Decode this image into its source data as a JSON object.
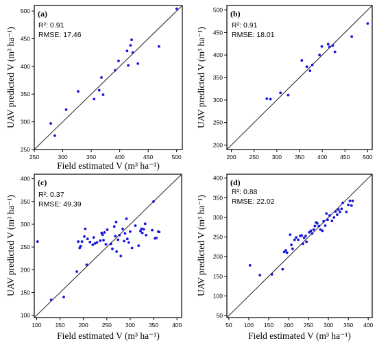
{
  "chart_data": [
    {
      "type": "scatter",
      "panel_label": "(a)",
      "r2_label": "R²:",
      "r2_value": "0.91",
      "rmse_label": "RMSE:",
      "rmse_value": "17.46",
      "xlim": [
        250,
        510
      ],
      "ylim": [
        250,
        510
      ],
      "x_ticks": [
        250,
        300,
        350,
        400,
        450,
        500
      ],
      "y_ticks": [
        250,
        300,
        350,
        400,
        450,
        500
      ],
      "reference_line": "1:1",
      "points": [
        [
          279,
          297
        ],
        [
          286,
          275
        ],
        [
          306,
          322
        ],
        [
          327,
          355
        ],
        [
          355,
          341
        ],
        [
          364,
          357
        ],
        [
          368,
          380
        ],
        [
          371,
          349
        ],
        [
          392,
          393
        ],
        [
          398,
          410
        ],
        [
          413,
          428
        ],
        [
          415,
          402
        ],
        [
          419,
          438
        ],
        [
          421,
          448
        ],
        [
          423,
          425
        ],
        [
          432,
          405
        ],
        [
          469,
          436
        ],
        [
          500,
          504
        ]
      ]
    },
    {
      "type": "scatter",
      "panel_label": "(b)",
      "r2_label": "R²:",
      "r2_value": "0.91",
      "rmse_label": "RMSE:",
      "rmse_value": "18.01",
      "xlim": [
        190,
        510
      ],
      "ylim": [
        190,
        510
      ],
      "x_ticks": [
        200,
        250,
        300,
        350,
        400,
        450,
        500
      ],
      "y_ticks": [
        200,
        250,
        300,
        350,
        400,
        450,
        500
      ],
      "reference_line": "1:1",
      "points": [
        [
          278,
          303
        ],
        [
          286,
          302
        ],
        [
          308,
          316
        ],
        [
          325,
          311
        ],
        [
          355,
          388
        ],
        [
          366,
          374
        ],
        [
          373,
          365
        ],
        [
          378,
          378
        ],
        [
          394,
          400
        ],
        [
          399,
          419
        ],
        [
          413,
          424
        ],
        [
          416,
          418
        ],
        [
          423,
          421
        ],
        [
          428,
          407
        ],
        [
          465,
          441
        ],
        [
          500,
          470
        ]
      ]
    },
    {
      "type": "scatter",
      "panel_label": "(c)",
      "r2_label": "R²:",
      "r2_value": "0.37",
      "rmse_label": "RMSE:",
      "rmse_value": "49.39",
      "xlim": [
        95,
        410
      ],
      "ylim": [
        95,
        410
      ],
      "x_ticks": [
        100,
        150,
        200,
        250,
        300,
        350,
        400
      ],
      "y_ticks": [
        100,
        150,
        200,
        250,
        300,
        350,
        400
      ],
      "reference_line": "1:1",
      "points": [
        [
          102,
          262
        ],
        [
          131,
          134
        ],
        [
          158,
          140
        ],
        [
          186,
          196
        ],
        [
          189,
          262
        ],
        [
          192,
          248
        ],
        [
          194,
          252
        ],
        [
          197,
          262
        ],
        [
          202,
          273
        ],
        [
          204,
          290
        ],
        [
          207,
          211
        ],
        [
          209,
          268
        ],
        [
          214,
          261
        ],
        [
          220,
          255
        ],
        [
          222,
          271
        ],
        [
          225,
          258
        ],
        [
          229,
          260
        ],
        [
          236,
          264
        ],
        [
          239,
          281
        ],
        [
          241,
          277
        ],
        [
          243,
          265
        ],
        [
          245,
          282
        ],
        [
          248,
          256
        ],
        [
          251,
          288
        ],
        [
          259,
          257
        ],
        [
          262,
          246
        ],
        [
          266,
          295
        ],
        [
          268,
          274
        ],
        [
          270,
          305
        ],
        [
          271,
          240
        ],
        [
          274,
          266
        ],
        [
          277,
          276
        ],
        [
          280,
          230
        ],
        [
          284,
          290
        ],
        [
          287,
          263
        ],
        [
          289,
          280
        ],
        [
          292,
          312
        ],
        [
          294,
          268
        ],
        [
          297,
          260
        ],
        [
          300,
          284
        ],
        [
          304,
          248
        ],
        [
          311,
          297
        ],
        [
          318,
          253
        ],
        [
          322,
          285
        ],
        [
          324,
          290
        ],
        [
          326,
          281
        ],
        [
          329,
          289
        ],
        [
          332,
          301
        ],
        [
          334,
          276
        ],
        [
          347,
          287
        ],
        [
          350,
          350
        ],
        [
          353,
          269
        ],
        [
          356,
          270
        ],
        [
          360,
          284
        ],
        [
          362,
          283
        ]
      ]
    },
    {
      "type": "scatter",
      "panel_label": "(d)",
      "r2_label": "R²:",
      "r2_value": "0.88",
      "rmse_label": "RMSE:",
      "rmse_value": "22.02",
      "xlim": [
        45,
        410
      ],
      "ylim": [
        45,
        410
      ],
      "x_ticks": [
        50,
        100,
        150,
        200,
        250,
        300,
        350,
        400
      ],
      "y_ticks": [
        50,
        100,
        150,
        200,
        250,
        300,
        350,
        400
      ],
      "reference_line": "1:1",
      "points": [
        [
          103,
          178
        ],
        [
          128,
          153
        ],
        [
          158,
          155
        ],
        [
          185,
          168
        ],
        [
          189,
          212
        ],
        [
          193,
          216
        ],
        [
          196,
          210
        ],
        [
          204,
          256
        ],
        [
          207,
          230
        ],
        [
          210,
          220
        ],
        [
          215,
          243
        ],
        [
          219,
          249
        ],
        [
          224,
          243
        ],
        [
          229,
          253
        ],
        [
          233,
          254
        ],
        [
          236,
          233
        ],
        [
          239,
          248
        ],
        [
          243,
          253
        ],
        [
          245,
          238
        ],
        [
          252,
          262
        ],
        [
          256,
          266
        ],
        [
          259,
          259
        ],
        [
          263,
          269
        ],
        [
          266,
          278
        ],
        [
          269,
          287
        ],
        [
          272,
          285
        ],
        [
          276,
          278
        ],
        [
          280,
          269
        ],
        [
          285,
          266
        ],
        [
          288,
          290
        ],
        [
          292,
          279
        ],
        [
          295,
          310
        ],
        [
          298,
          294
        ],
        [
          303,
          305
        ],
        [
          309,
          291
        ],
        [
          314,
          300
        ],
        [
          318,
          315
        ],
        [
          322,
          307
        ],
        [
          325,
          320
        ],
        [
          329,
          314
        ],
        [
          333,
          322
        ],
        [
          336,
          337
        ],
        [
          345,
          314
        ],
        [
          350,
          332
        ],
        [
          354,
          342
        ],
        [
          358,
          330
        ],
        [
          361,
          342
        ]
      ]
    }
  ],
  "axis_titles": {
    "a_y": "UAV predicted V (m³ ha⁻¹)",
    "a_x": "Field estimated V (m³ ha⁻¹)",
    "b_y": "UAV predicted V (m³ ha⁻¹)",
    "c_y": "UAV predicted V (m³ ha⁻¹)",
    "c_x": "Field estimated V (m³ ha⁻¹)",
    "d_y": "UAV predicted V (m³ ha⁻¹)",
    "d_x": "Field estimated V (m³ ha⁻¹)"
  },
  "colors": {
    "points": "#1515dd",
    "reference_line": "#333333",
    "frame": "#000000"
  }
}
